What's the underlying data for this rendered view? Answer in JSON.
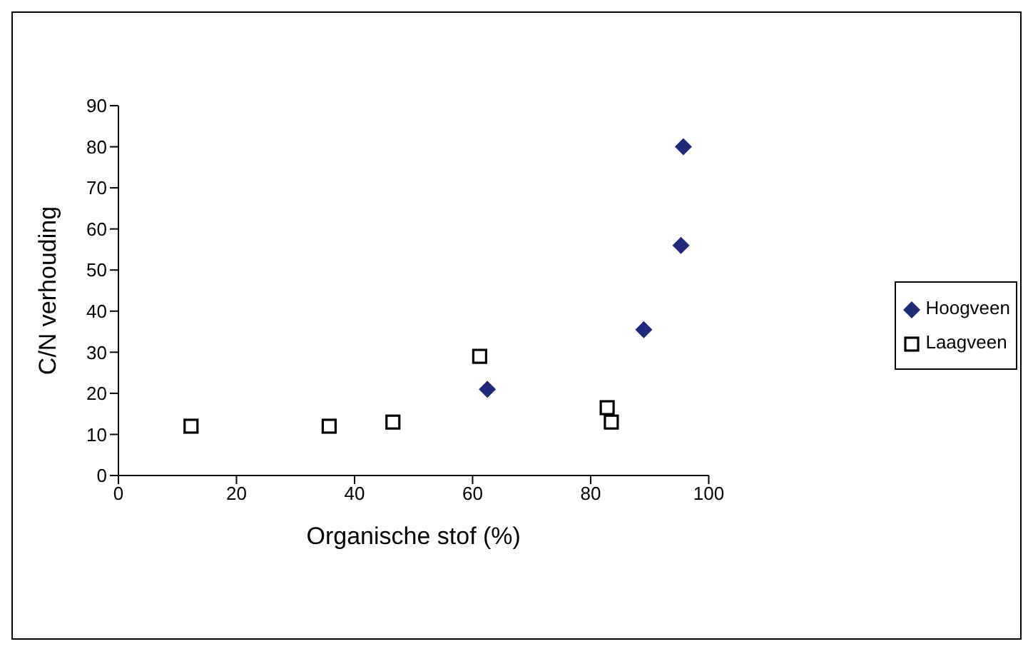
{
  "chart_data": {
    "type": "scatter",
    "xlabel": "Organische stof (%)",
    "ylabel": "C/N verhouding",
    "xlim": [
      0,
      100
    ],
    "xticks": [
      0,
      20,
      40,
      60,
      80,
      100
    ],
    "ylim": [
      0,
      90
    ],
    "yticks": [
      0,
      10,
      20,
      30,
      40,
      50,
      60,
      70,
      80,
      90
    ],
    "grid": false,
    "legend": "right",
    "series": [
      {
        "name": "Hoogveen",
        "color": "#1f2a7a",
        "marker": "diamond",
        "x": [
          62.5,
          89,
          95.3,
          95.7
        ],
        "values": [
          21,
          35.5,
          56,
          80
        ]
      },
      {
        "name": "Laagveen",
        "color": "#000000",
        "marker": "square",
        "x": [
          12.3,
          35.7,
          46.5,
          61.2,
          82.8,
          83.5
        ],
        "values": [
          12,
          12,
          13,
          29,
          16.5,
          13
        ]
      }
    ]
  }
}
